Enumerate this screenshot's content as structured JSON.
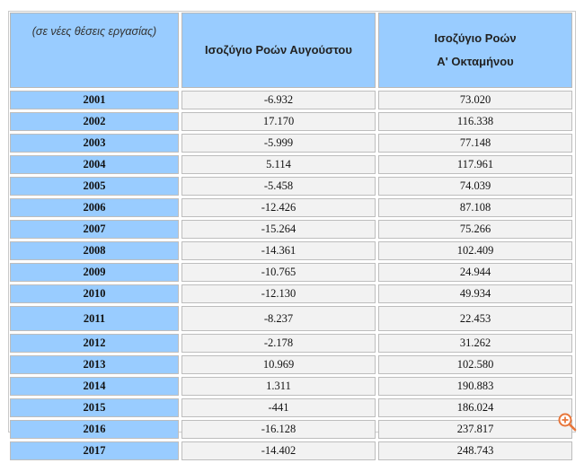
{
  "header": {
    "corner_label": "(σε νέες θέσεις εργασίας)",
    "col1": "Ισοζύγιο Ροών Αυγούστου",
    "col2_line1": "Ισοζύγιο Ροών",
    "col2_line2": "Α' Οκταμήνου"
  },
  "rows": [
    {
      "year": "2001",
      "august": "-6.932",
      "eight_month": "73.020"
    },
    {
      "year": "2002",
      "august": "17.170",
      "eight_month": "116.338"
    },
    {
      "year": "2003",
      "august": "-5.999",
      "eight_month": "77.148"
    },
    {
      "year": "2004",
      "august": "5.114",
      "eight_month": "117.961"
    },
    {
      "year": "2005",
      "august": "-5.458",
      "eight_month": "74.039"
    },
    {
      "year": "2006",
      "august": "-12.426",
      "eight_month": "87.108"
    },
    {
      "year": "2007",
      "august": "-15.264",
      "eight_month": "75.266"
    },
    {
      "year": "2008",
      "august": "-14.361",
      "eight_month": "102.409"
    },
    {
      "year": "2009",
      "august": "-10.765",
      "eight_month": "24.944"
    },
    {
      "year": "2010",
      "august": "-12.130",
      "eight_month": "49.934"
    },
    {
      "year": "2011",
      "august": "-8.237",
      "eight_month": "22.453"
    },
    {
      "year": "2012",
      "august": "-2.178",
      "eight_month": "31.262"
    },
    {
      "year": "2013",
      "august": "10.969",
      "eight_month": "102.580"
    },
    {
      "year": "2014",
      "august": "1.311",
      "eight_month": "190.883"
    },
    {
      "year": "2015",
      "august": "-441",
      "eight_month": "186.024"
    },
    {
      "year": "2016",
      "august": "-16.128",
      "eight_month": "237.817"
    },
    {
      "year": "2017",
      "august": "-14.402",
      "eight_month": "248.743"
    }
  ],
  "icons": {
    "zoom": "zoom-in-icon"
  },
  "colors": {
    "header_bg": "#99ccff",
    "cell_bg": "#f2f2f2",
    "zoom_accent": "#e8763a"
  }
}
